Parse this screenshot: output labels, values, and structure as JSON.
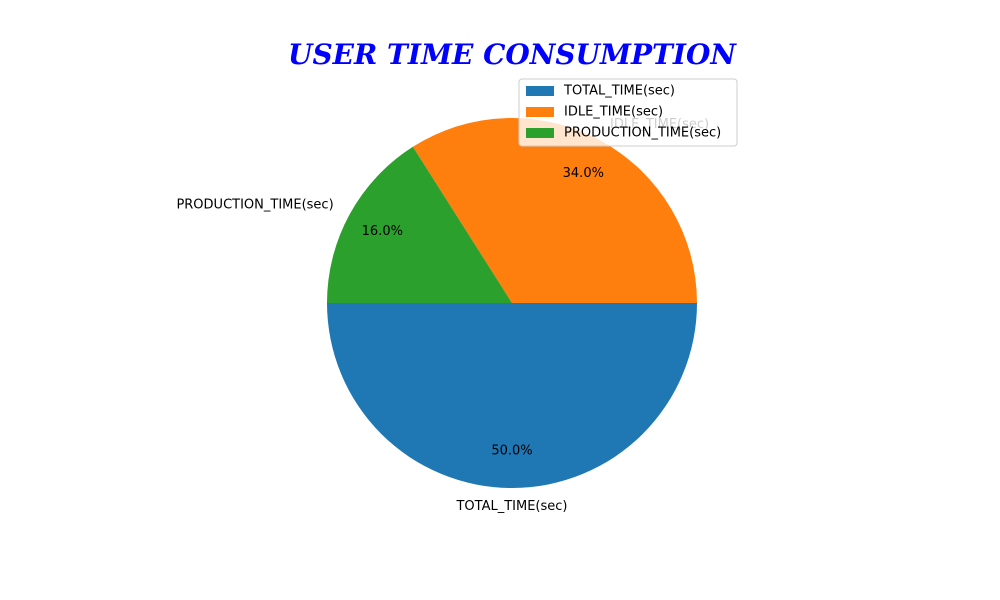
{
  "chart_data": {
    "type": "pie",
    "title": "USER TIME CONSUMPTION",
    "title_color": "#0000ff",
    "start_angle_deg": 180,
    "direction": "counterclockwise",
    "legend_position": "top-right",
    "slices": [
      {
        "label": "TOTAL_TIME(sec)",
        "value": 50.0,
        "pct_label": "50.0%",
        "color": "#1f77b4"
      },
      {
        "label": "IDLE_TIME(sec)",
        "value": 34.0,
        "pct_label": "34.0%",
        "color": "#ff7f0e"
      },
      {
        "label": "PRODUCTION_TIME(sec)",
        "value": 16.0,
        "pct_label": "16.0%",
        "color": "#2ca02c"
      }
    ]
  }
}
